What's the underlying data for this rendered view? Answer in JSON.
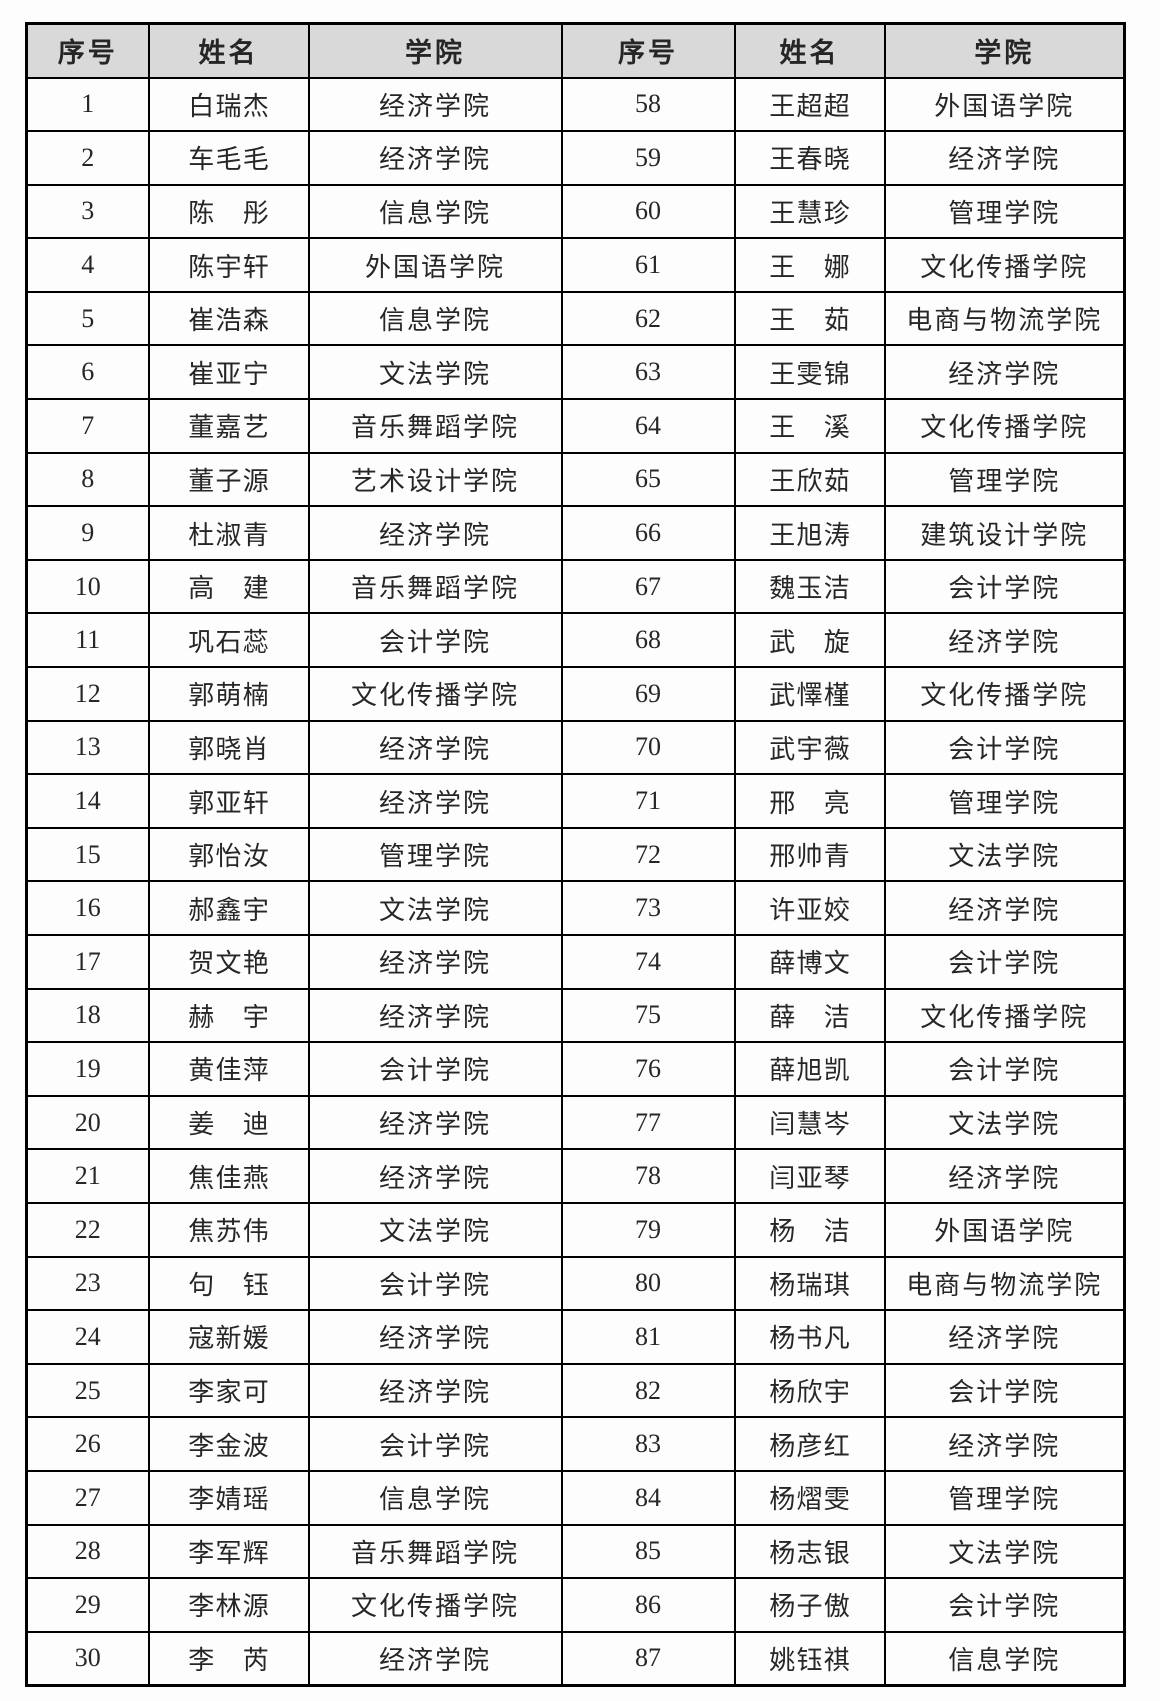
{
  "table": {
    "headers": [
      "序号",
      "姓名",
      "学院",
      "序号",
      "姓名",
      "学院"
    ],
    "rows": [
      [
        "1",
        "白瑞杰",
        "经济学院",
        "58",
        "王超超",
        "外国语学院"
      ],
      [
        "2",
        "车毛毛",
        "经济学院",
        "59",
        "王春晓",
        "经济学院"
      ],
      [
        "3",
        "陈彤",
        "信息学院",
        "60",
        "王慧珍",
        "管理学院"
      ],
      [
        "4",
        "陈宇轩",
        "外国语学院",
        "61",
        "王娜",
        "文化传播学院"
      ],
      [
        "5",
        "崔浩森",
        "信息学院",
        "62",
        "王茹",
        "电商与物流学院"
      ],
      [
        "6",
        "崔亚宁",
        "文法学院",
        "63",
        "王雯锦",
        "经济学院"
      ],
      [
        "7",
        "董嘉艺",
        "音乐舞蹈学院",
        "64",
        "王溪",
        "文化传播学院"
      ],
      [
        "8",
        "董子源",
        "艺术设计学院",
        "65",
        "王欣茹",
        "管理学院"
      ],
      [
        "9",
        "杜淑青",
        "经济学院",
        "66",
        "王旭涛",
        "建筑设计学院"
      ],
      [
        "10",
        "高建",
        "音乐舞蹈学院",
        "67",
        "魏玉洁",
        "会计学院"
      ],
      [
        "11",
        "巩石蕊",
        "会计学院",
        "68",
        "武旋",
        "经济学院"
      ],
      [
        "12",
        "郭萌楠",
        "文化传播学院",
        "69",
        "武懌槿",
        "文化传播学院"
      ],
      [
        "13",
        "郭晓肖",
        "经济学院",
        "70",
        "武宇薇",
        "会计学院"
      ],
      [
        "14",
        "郭亚轩",
        "经济学院",
        "71",
        "邢亮",
        "管理学院"
      ],
      [
        "15",
        "郭怡汝",
        "管理学院",
        "72",
        "邢帅青",
        "文法学院"
      ],
      [
        "16",
        "郝鑫宇",
        "文法学院",
        "73",
        "许亚姣",
        "经济学院"
      ],
      [
        "17",
        "贺文艳",
        "经济学院",
        "74",
        "薛博文",
        "会计学院"
      ],
      [
        "18",
        "赫宇",
        "经济学院",
        "75",
        "薛洁",
        "文化传播学院"
      ],
      [
        "19",
        "黄佳萍",
        "会计学院",
        "76",
        "薛旭凯",
        "会计学院"
      ],
      [
        "20",
        "姜迪",
        "经济学院",
        "77",
        "闫慧岑",
        "文法学院"
      ],
      [
        "21",
        "焦佳燕",
        "经济学院",
        "78",
        "闫亚琴",
        "经济学院"
      ],
      [
        "22",
        "焦苏伟",
        "文法学院",
        "79",
        "杨洁",
        "外国语学院"
      ],
      [
        "23",
        "句钰",
        "会计学院",
        "80",
        "杨瑞琪",
        "电商与物流学院"
      ],
      [
        "24",
        "寇新媛",
        "经济学院",
        "81",
        "杨书凡",
        "经济学院"
      ],
      [
        "25",
        "李家可",
        "经济学院",
        "82",
        "杨欣宇",
        "会计学院"
      ],
      [
        "26",
        "李金波",
        "会计学院",
        "83",
        "杨彦红",
        "经济学院"
      ],
      [
        "27",
        "李婧瑶",
        "信息学院",
        "84",
        "杨熠雯",
        "管理学院"
      ],
      [
        "28",
        "李军辉",
        "音乐舞蹈学院",
        "85",
        "杨志银",
        "文法学院"
      ],
      [
        "29",
        "李林源",
        "文化传播学院",
        "86",
        "杨子傲",
        "会计学院"
      ],
      [
        "30",
        "李芮",
        "经济学院",
        "87",
        "姚钰祺",
        "信息学院"
      ]
    ]
  },
  "colors": {
    "header_bg": "#d9d9d9",
    "border": "#000000",
    "text": "#262626"
  }
}
